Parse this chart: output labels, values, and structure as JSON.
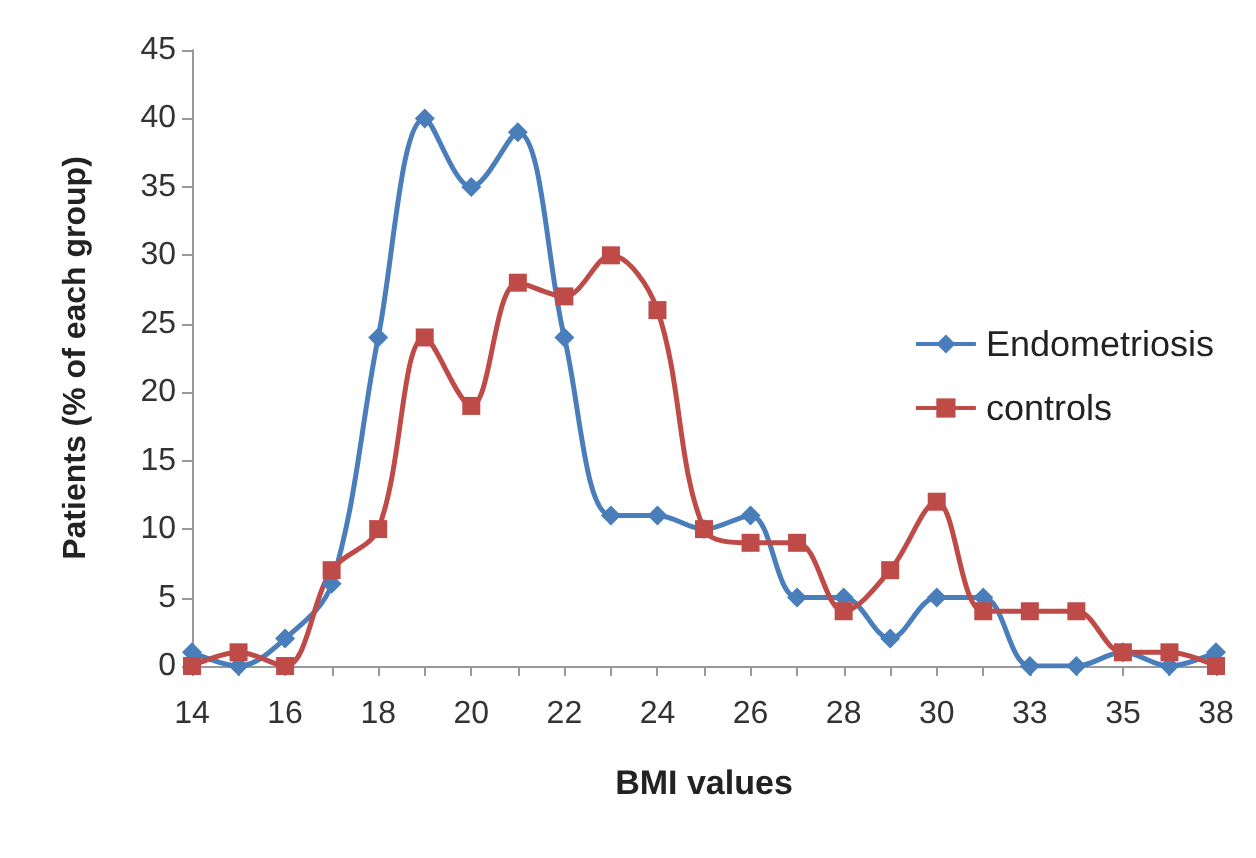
{
  "chart_data": {
    "type": "line",
    "xlabel": "BMI values",
    "ylabel": "Patients (% of each group)",
    "categories": [
      "14",
      null,
      "16",
      null,
      "18",
      null,
      "20",
      null,
      "22",
      null,
      "24",
      null,
      "26",
      null,
      "28",
      null,
      "30",
      null,
      "33",
      null,
      "35",
      null,
      "38"
    ],
    "series": [
      {
        "name": "Endometriosis",
        "color": "#4a7ebb",
        "marker": "diamond",
        "values": [
          1,
          0,
          2,
          6,
          24,
          40,
          35,
          39,
          24,
          11,
          11,
          10,
          11,
          5,
          5,
          2,
          5,
          5,
          0,
          0,
          1,
          0,
          1
        ]
      },
      {
        "name": "controls",
        "color": "#be4b48",
        "marker": "square",
        "values": [
          0,
          1,
          0,
          7,
          10,
          24,
          19,
          28,
          27,
          30,
          26,
          10,
          9,
          9,
          4,
          7,
          12,
          4,
          4,
          4,
          1,
          1,
          0
        ]
      }
    ],
    "ylim": [
      0,
      45
    ],
    "yticks": [
      0,
      5,
      10,
      15,
      20,
      25,
      30,
      35,
      40,
      45
    ],
    "grid": false,
    "legend": "right",
    "line_style": "solid"
  }
}
